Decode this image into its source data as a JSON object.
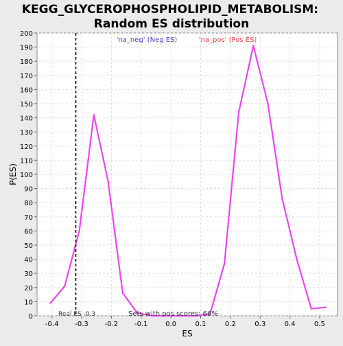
{
  "chart_data": {
    "type": "line",
    "title_line1": "KEGG_GLYCEROPHOSPHOLIPID_METABOLISM:",
    "title_line2": "Random ES distribution",
    "xlabel": "ES",
    "ylabel": "P(ES)",
    "xlim": [
      -0.45,
      0.56
    ],
    "ylim": [
      0,
      200
    ],
    "x_ticks": [
      -0.4,
      -0.3,
      -0.2,
      -0.1,
      0.0,
      0.1,
      0.2,
      0.3,
      0.4,
      0.5
    ],
    "x_tick_labels": [
      "-0.4",
      "-0.3",
      "-0.2",
      "-0.1",
      "0.0",
      "0.1",
      "0.2",
      "0.3",
      "0.4",
      "0.5"
    ],
    "y_ticks": [
      0,
      10,
      20,
      30,
      40,
      50,
      60,
      70,
      80,
      90,
      100,
      110,
      120,
      130,
      140,
      150,
      160,
      170,
      180,
      190,
      200
    ],
    "y_tick_labels": [
      "0",
      "10",
      "20",
      "30",
      "40",
      "50",
      "60",
      "70",
      "80",
      "90",
      "100",
      "110",
      "120",
      "130",
      "140",
      "150",
      "160",
      "170",
      "180",
      "190",
      "200"
    ],
    "grid": true,
    "series": [
      {
        "color": "#ee44ee",
        "x": [
          -0.405,
          -0.357,
          -0.308,
          -0.259,
          -0.211,
          -0.162,
          -0.113,
          -0.064,
          -0.016,
          0.033,
          0.082,
          0.131,
          0.18,
          0.228,
          0.277,
          0.326,
          0.374,
          0.423,
          0.472,
          0.52
        ],
        "y": [
          9,
          21,
          60,
          142,
          95,
          16,
          2,
          0,
          0,
          0,
          0,
          1,
          37,
          144,
          191,
          150,
          83,
          40,
          5,
          6
        ]
      }
    ],
    "real_es": -0.32,
    "real_es_label": "Real ES -0.3",
    "legend_neg": "'na_neg' (Neg ES)",
    "legend_pos": "'na_pos' (Pos ES)",
    "legend_neg_color": "#4444cc",
    "legend_pos_color": "#ee4444",
    "annotation": "Sets with pos scores: 66%"
  }
}
